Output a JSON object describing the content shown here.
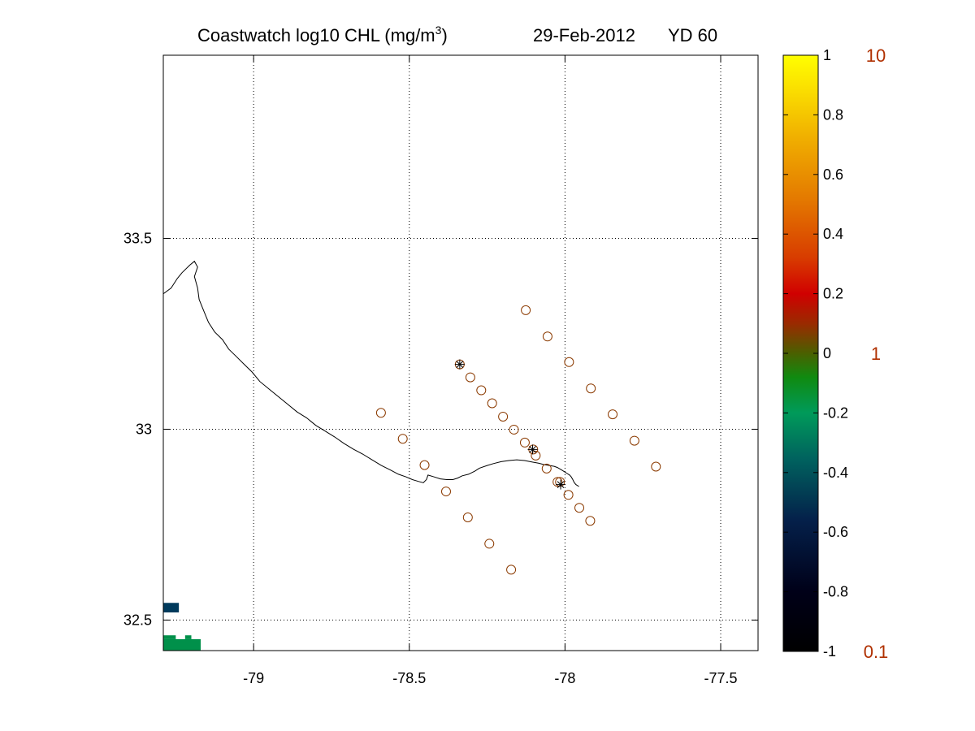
{
  "title": {
    "main": "Coastwatch  log10  CHL (mg/m",
    "superscript": "3",
    "close": ")",
    "date": "29-Feb-2012",
    "yearday": "YD 60"
  },
  "map": {
    "x_ticks": [
      {
        "value": -79,
        "label": "-79"
      },
      {
        "value": -78.5,
        "label": "-78.5"
      },
      {
        "value": -78,
        "label": "-78"
      },
      {
        "value": -77.5,
        "label": "-77.5"
      }
    ],
    "y_ticks": [
      {
        "value": 33.5,
        "label": "33.5"
      },
      {
        "value": 33,
        "label": "33"
      },
      {
        "value": 32.5,
        "label": "32.5"
      }
    ],
    "xlim": [
      -79.29,
      -77.38
    ],
    "ylim": [
      32.42,
      33.98
    ],
    "grid": true,
    "grid_style": "dotted",
    "station_color": "#8b3a00",
    "stations": [
      {
        "lon": -78.126,
        "lat": 33.312
      },
      {
        "lon": -78.056,
        "lat": 33.243
      },
      {
        "lon": -77.987,
        "lat": 33.176
      },
      {
        "lon": -77.917,
        "lat": 33.107
      },
      {
        "lon": -77.847,
        "lat": 33.039
      },
      {
        "lon": -77.777,
        "lat": 32.97
      },
      {
        "lon": -77.708,
        "lat": 32.902
      },
      {
        "lon": -78.591,
        "lat": 33.043
      },
      {
        "lon": -78.521,
        "lat": 32.975
      },
      {
        "lon": -78.451,
        "lat": 32.906
      },
      {
        "lon": -78.382,
        "lat": 32.837
      },
      {
        "lon": -78.312,
        "lat": 32.769
      },
      {
        "lon": -78.243,
        "lat": 32.7
      },
      {
        "lon": -78.173,
        "lat": 32.632
      },
      {
        "lon": -78.338,
        "lat": 33.17
      },
      {
        "lon": -78.304,
        "lat": 33.136
      },
      {
        "lon": -78.269,
        "lat": 33.102
      },
      {
        "lon": -78.234,
        "lat": 33.068
      },
      {
        "lon": -78.199,
        "lat": 33.033
      },
      {
        "lon": -78.164,
        "lat": 32.999
      },
      {
        "lon": -78.129,
        "lat": 32.965
      },
      {
        "lon": -78.094,
        "lat": 32.931
      },
      {
        "lon": -78.059,
        "lat": 32.897
      },
      {
        "lon": -78.024,
        "lat": 32.862
      },
      {
        "lon": -77.989,
        "lat": 32.828
      },
      {
        "lon": -77.954,
        "lat": 32.794
      },
      {
        "lon": -77.919,
        "lat": 32.76
      },
      {
        "lon": -78.102,
        "lat": 32.947
      },
      {
        "lon": -78.016,
        "lat": 32.862
      }
    ],
    "starred_stations": [
      {
        "lon": -78.338,
        "lat": 33.17
      },
      {
        "lon": -78.104,
        "lat": 32.947
      },
      {
        "lon": -78.014,
        "lat": 32.855
      }
    ],
    "coastline": [
      [
        -79.29,
        33.355
      ],
      [
        -79.265,
        33.37
      ],
      [
        -79.245,
        33.395
      ],
      [
        -79.23,
        33.41
      ],
      [
        -79.205,
        33.43
      ],
      [
        -79.19,
        33.44
      ],
      [
        -79.18,
        33.425
      ],
      [
        -79.19,
        33.4
      ],
      [
        -79.18,
        33.37
      ],
      [
        -79.175,
        33.34
      ],
      [
        -79.16,
        33.31
      ],
      [
        -79.145,
        33.28
      ],
      [
        -79.125,
        33.255
      ],
      [
        -79.1,
        33.235
      ],
      [
        -79.08,
        33.21
      ],
      [
        -79.055,
        33.19
      ],
      [
        -79.03,
        33.17
      ],
      [
        -79.005,
        33.15
      ],
      [
        -78.98,
        33.125
      ],
      [
        -78.95,
        33.105
      ],
      [
        -78.92,
        33.085
      ],
      [
        -78.89,
        33.065
      ],
      [
        -78.86,
        33.045
      ],
      [
        -78.83,
        33.03
      ],
      [
        -78.8,
        33.01
      ],
      [
        -78.77,
        32.995
      ],
      [
        -78.74,
        32.98
      ],
      [
        -78.71,
        32.963
      ],
      [
        -78.68,
        32.948
      ],
      [
        -78.65,
        32.935
      ],
      [
        -78.62,
        32.92
      ],
      [
        -78.59,
        32.905
      ],
      [
        -78.56,
        32.893
      ],
      [
        -78.535,
        32.882
      ],
      [
        -78.51,
        32.875
      ],
      [
        -78.49,
        32.868
      ],
      [
        -78.47,
        32.863
      ],
      [
        -78.455,
        32.86
      ],
      [
        -78.445,
        32.868
      ],
      [
        -78.44,
        32.88
      ],
      [
        -78.42,
        32.875
      ],
      [
        -78.4,
        32.87
      ],
      [
        -78.38,
        32.868
      ],
      [
        -78.36,
        32.868
      ],
      [
        -78.345,
        32.872
      ],
      [
        -78.33,
        32.878
      ],
      [
        -78.31,
        32.882
      ],
      [
        -78.29,
        32.89
      ],
      [
        -78.275,
        32.898
      ],
      [
        -78.25,
        32.905
      ],
      [
        -78.23,
        32.91
      ],
      [
        -78.205,
        32.915
      ],
      [
        -78.18,
        32.918
      ],
      [
        -78.155,
        32.92
      ],
      [
        -78.13,
        32.918
      ],
      [
        -78.105,
        32.914
      ],
      [
        -78.085,
        32.911
      ],
      [
        -78.07,
        32.908
      ],
      [
        -78.05,
        32.905
      ],
      [
        -78.035,
        32.903
      ],
      [
        -78.025,
        32.9
      ],
      [
        -78.01,
        32.893
      ],
      [
        -77.995,
        32.885
      ],
      [
        -77.985,
        32.88
      ],
      [
        -77.98,
        32.875
      ],
      [
        -77.975,
        32.868
      ],
      [
        -77.97,
        32.86
      ],
      [
        -77.965,
        32.855
      ],
      [
        -77.955,
        32.85
      ]
    ],
    "chl_patches": [
      {
        "color": "#003a5c",
        "cells": [
          [
            -79.29,
            32.52,
            0.05,
            0.025
          ]
        ]
      },
      {
        "color": "#00904a",
        "cells": [
          [
            -79.29,
            32.42,
            0.12,
            0.03
          ],
          [
            -79.29,
            32.45,
            0.04,
            0.01
          ],
          [
            -79.22,
            32.45,
            0.02,
            0.01
          ]
        ]
      }
    ]
  },
  "colorbar": {
    "colormap": "black-blue-green-brown-red-orange-yellow",
    "stops": [
      {
        "offset": 0.0,
        "color": "#000000"
      },
      {
        "offset": 0.1,
        "color": "#000018"
      },
      {
        "offset": 0.22,
        "color": "#04204a"
      },
      {
        "offset": 0.32,
        "color": "#00605e"
      },
      {
        "offset": 0.4,
        "color": "#009a5a"
      },
      {
        "offset": 0.46,
        "color": "#108a10"
      },
      {
        "offset": 0.5,
        "color": "#4a6000"
      },
      {
        "offset": 0.55,
        "color": "#9a2a00"
      },
      {
        "offset": 0.6,
        "color": "#d00000"
      },
      {
        "offset": 0.66,
        "color": "#d83c00"
      },
      {
        "offset": 0.76,
        "color": "#e47a00"
      },
      {
        "offset": 0.86,
        "color": "#f0ae00"
      },
      {
        "offset": 0.94,
        "color": "#fadd00"
      },
      {
        "offset": 1.0,
        "color": "#ffff00"
      }
    ],
    "range": [
      -1,
      1
    ],
    "ticks": [
      {
        "value": 1,
        "label": "1"
      },
      {
        "value": 0.8,
        "label": "0.8"
      },
      {
        "value": 0.6,
        "label": "0.6"
      },
      {
        "value": 0.4,
        "label": "0.4"
      },
      {
        "value": 0.2,
        "label": "0.2"
      },
      {
        "value": 0,
        "label": "0"
      },
      {
        "value": -0.2,
        "label": "-0.2"
      },
      {
        "value": -0.4,
        "label": "-0.4"
      },
      {
        "value": -0.6,
        "label": "-0.6"
      },
      {
        "value": -0.8,
        "label": "-0.8"
      },
      {
        "value": -1,
        "label": "-1"
      }
    ],
    "linear_label_color": "#b03000",
    "linear_labels": [
      {
        "value": 1,
        "label": "10"
      },
      {
        "value": 0,
        "label": "1"
      },
      {
        "value": -1,
        "label": "0.1"
      }
    ]
  }
}
